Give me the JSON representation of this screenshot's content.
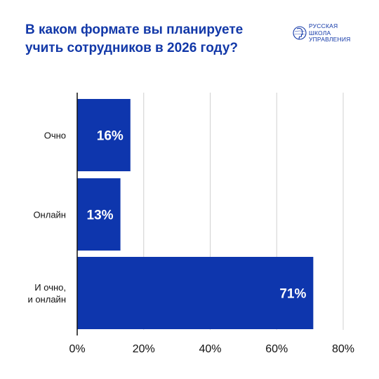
{
  "header": {
    "title": "В каком формате вы планируете учить сотрудников в 2026 году?"
  },
  "logo": {
    "lines": [
      "РУССКАЯ",
      "ШКОЛА",
      "УПРАВЛЕНИЯ"
    ],
    "icon": "globe-head-icon",
    "color": "#1238a8"
  },
  "chart_data": {
    "type": "bar",
    "orientation": "horizontal",
    "categories": [
      [
        "Очно"
      ],
      [
        "Онлайн"
      ],
      [
        "И очно,",
        "и онлайн"
      ]
    ],
    "values": [
      16,
      13,
      71
    ],
    "data_labels": [
      "16%",
      "13%",
      "71%"
    ],
    "xlim": [
      0,
      80
    ],
    "xticks": [
      0,
      20,
      40,
      60,
      80
    ],
    "xtick_labels": [
      "0%",
      "20%",
      "40%",
      "60%",
      "80%"
    ],
    "grid": true,
    "bar_color": "#0e36ad",
    "label_color": "#ffffff"
  }
}
